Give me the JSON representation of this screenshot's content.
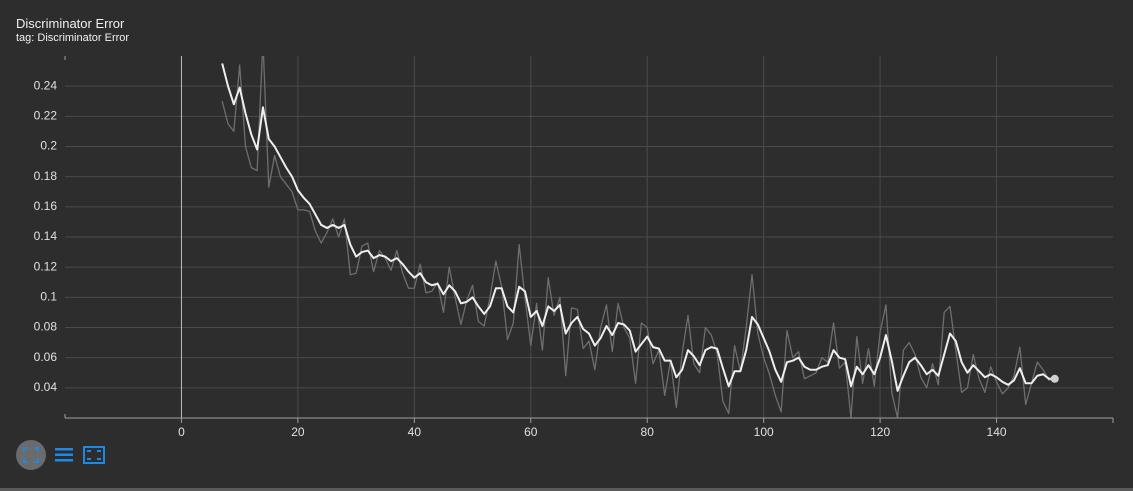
{
  "chart_data": {
    "type": "line",
    "title": "Discriminator Error",
    "subtitle": "tag: Discriminator Error",
    "xlim": [
      -20,
      160
    ],
    "ylim": [
      0.02,
      0.26
    ],
    "xticks": [
      0,
      20,
      40,
      60,
      80,
      100,
      120,
      140
    ],
    "yticks": [
      0.04,
      0.06,
      0.08,
      0.1,
      0.12,
      0.14,
      0.16,
      0.18,
      0.2,
      0.22,
      0.24
    ],
    "grid": true,
    "x": [
      7,
      8,
      9,
      10,
      11,
      12,
      13,
      14,
      15,
      16,
      17,
      18,
      19,
      20,
      21,
      22,
      23,
      24,
      25,
      26,
      27,
      28,
      29,
      30,
      31,
      32,
      33,
      34,
      35,
      36,
      37,
      38,
      39,
      40,
      41,
      42,
      43,
      44,
      45,
      46,
      47,
      48,
      49,
      50,
      51,
      52,
      53,
      54,
      55,
      56,
      57,
      58,
      59,
      60,
      61,
      62,
      63,
      64,
      65,
      66,
      67,
      68,
      69,
      70,
      71,
      72,
      73,
      74,
      75,
      76,
      77,
      78,
      79,
      80,
      81,
      82,
      83,
      84,
      85,
      86,
      87,
      88,
      89,
      90,
      91,
      92,
      93,
      94,
      95,
      96,
      97,
      98,
      99,
      100,
      101,
      102,
      103,
      104,
      105,
      106,
      107,
      108,
      109,
      110,
      111,
      112,
      113,
      114,
      115,
      116,
      117,
      118,
      119,
      120,
      121,
      122,
      123,
      124,
      125,
      126,
      127,
      128,
      129,
      130,
      131,
      132,
      133,
      134,
      135,
      136,
      137,
      138,
      139,
      140,
      141,
      142,
      143,
      144,
      145,
      146,
      147,
      148,
      149,
      150
    ],
    "series": [
      {
        "color": "#6e6e6e",
        "values": [
          0.23,
          0.215,
          0.21,
          0.254,
          0.2,
          0.186,
          0.184,
          0.27,
          0.173,
          0.194,
          0.18,
          0.175,
          0.17,
          0.158,
          0.158,
          0.157,
          0.144,
          0.136,
          0.143,
          0.152,
          0.14,
          0.152,
          0.115,
          0.116,
          0.134,
          0.136,
          0.117,
          0.131,
          0.126,
          0.118,
          0.131,
          0.116,
          0.106,
          0.106,
          0.122,
          0.103,
          0.104,
          0.11,
          0.09,
          0.12,
          0.1,
          0.082,
          0.098,
          0.108,
          0.084,
          0.081,
          0.1,
          0.124,
          0.107,
          0.072,
          0.083,
          0.135,
          0.1,
          0.068,
          0.096,
          0.065,
          0.113,
          0.088,
          0.1,
          0.048,
          0.093,
          0.092,
          0.066,
          0.071,
          0.052,
          0.08,
          0.095,
          0.064,
          0.096,
          0.08,
          0.073,
          0.043,
          0.083,
          0.08,
          0.056,
          0.065,
          0.035,
          0.058,
          0.027,
          0.063,
          0.088,
          0.056,
          0.05,
          0.08,
          0.075,
          0.063,
          0.031,
          0.023,
          0.068,
          0.051,
          0.08,
          0.115,
          0.076,
          0.06,
          0.049,
          0.035,
          0.024,
          0.078,
          0.06,
          0.064,
          0.046,
          0.048,
          0.05,
          0.06,
          0.057,
          0.083,
          0.053,
          0.057,
          0.02,
          0.074,
          0.043,
          0.066,
          0.041,
          0.077,
          0.095,
          0.037,
          0.02,
          0.065,
          0.07,
          0.062,
          0.047,
          0.04,
          0.056,
          0.042,
          0.09,
          0.094,
          0.065,
          0.037,
          0.04,
          0.062,
          0.046,
          0.037,
          0.054,
          0.044,
          0.036,
          0.04,
          0.048,
          0.067,
          0.029,
          0.043,
          0.057,
          0.052,
          0.045,
          0.046
        ]
      },
      {
        "color": "#eeeeee",
        "values": [
          0.255,
          0.24,
          0.228,
          0.239,
          0.222,
          0.208,
          0.198,
          0.226,
          0.205,
          0.2,
          0.193,
          0.186,
          0.18,
          0.171,
          0.166,
          0.162,
          0.155,
          0.148,
          0.146,
          0.148,
          0.146,
          0.148,
          0.135,
          0.127,
          0.13,
          0.131,
          0.126,
          0.128,
          0.127,
          0.124,
          0.126,
          0.122,
          0.117,
          0.113,
          0.116,
          0.11,
          0.108,
          0.109,
          0.102,
          0.108,
          0.104,
          0.096,
          0.097,
          0.1,
          0.094,
          0.089,
          0.094,
          0.106,
          0.106,
          0.094,
          0.09,
          0.107,
          0.104,
          0.087,
          0.091,
          0.081,
          0.094,
          0.091,
          0.095,
          0.076,
          0.083,
          0.087,
          0.079,
          0.076,
          0.068,
          0.073,
          0.081,
          0.075,
          0.083,
          0.082,
          0.078,
          0.064,
          0.069,
          0.074,
          0.067,
          0.066,
          0.058,
          0.058,
          0.047,
          0.052,
          0.065,
          0.061,
          0.055,
          0.065,
          0.067,
          0.066,
          0.053,
          0.041,
          0.051,
          0.051,
          0.065,
          0.087,
          0.082,
          0.073,
          0.064,
          0.052,
          0.044,
          0.057,
          0.058,
          0.06,
          0.054,
          0.052,
          0.052,
          0.054,
          0.055,
          0.065,
          0.06,
          0.059,
          0.041,
          0.054,
          0.049,
          0.055,
          0.049,
          0.06,
          0.075,
          0.058,
          0.038,
          0.048,
          0.057,
          0.06,
          0.055,
          0.049,
          0.052,
          0.048,
          0.062,
          0.076,
          0.071,
          0.057,
          0.05,
          0.055,
          0.051,
          0.047,
          0.049,
          0.047,
          0.044,
          0.042,
          0.045,
          0.053,
          0.043,
          0.043,
          0.048,
          0.049,
          0.046,
          0.046
        ]
      }
    ]
  }
}
